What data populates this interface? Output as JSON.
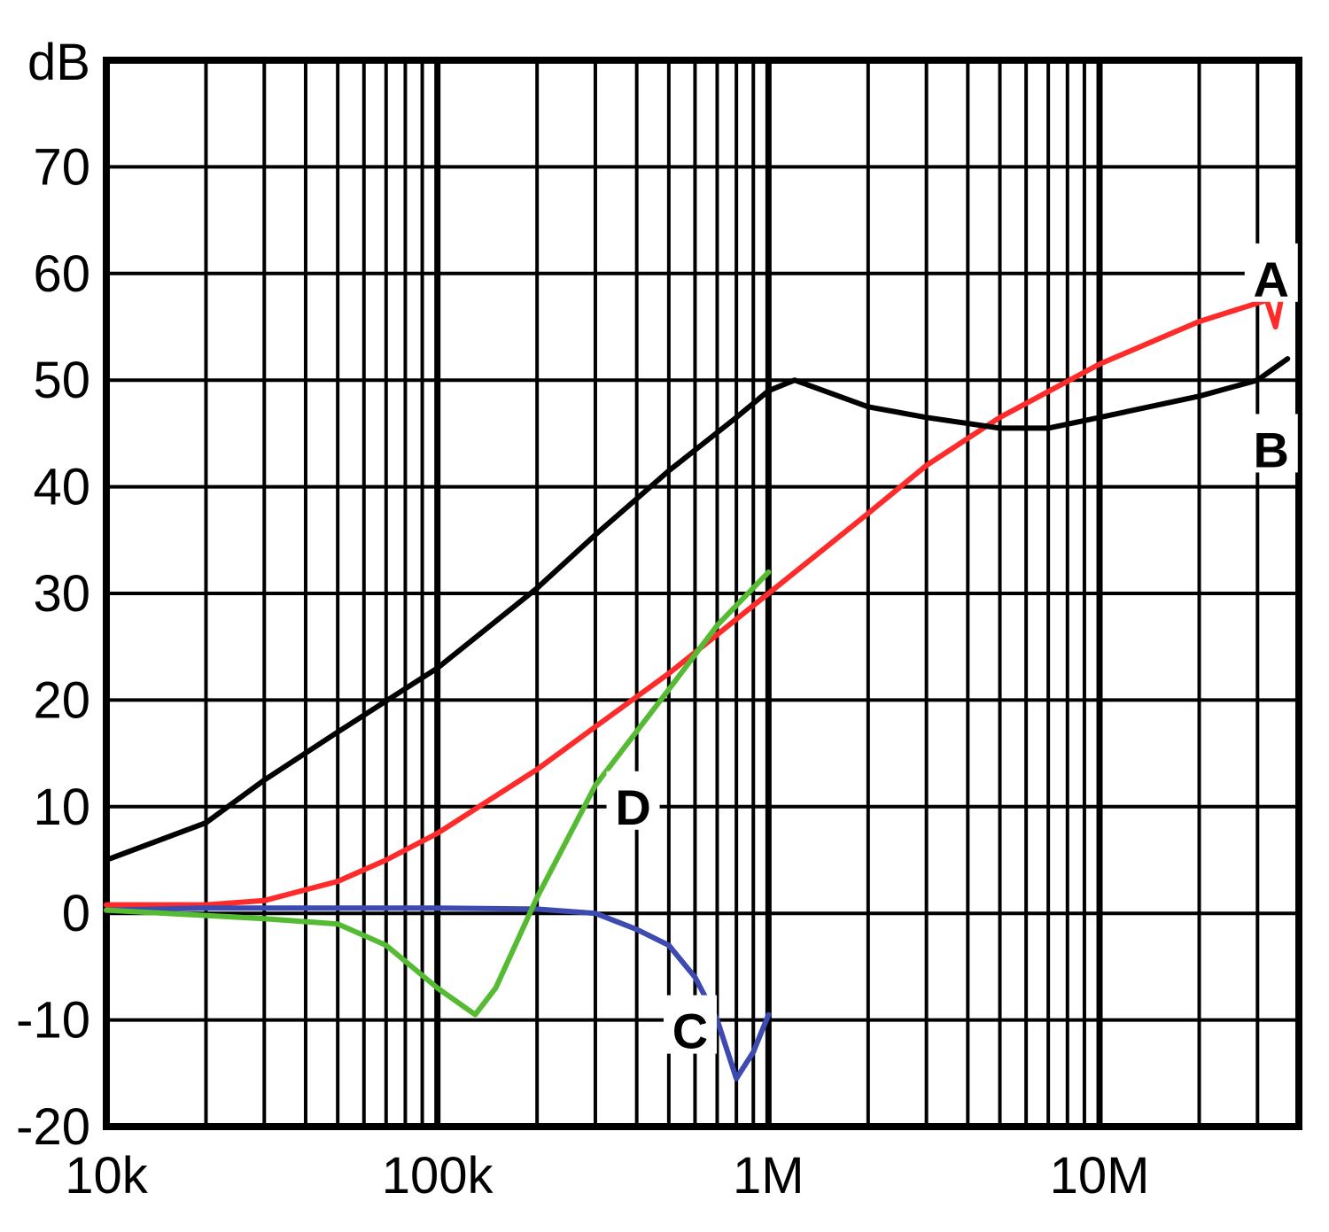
{
  "chart_data": {
    "type": "line",
    "x_scale": "log",
    "xlim": [
      10000,
      40000000
    ],
    "ylim": [
      -20,
      80
    ],
    "ylabel": "dB",
    "grid": true,
    "x_tick_labels": [
      {
        "value": 10000,
        "label": "10k"
      },
      {
        "value": 100000,
        "label": "100k"
      },
      {
        "value": 1000000,
        "label": "1M"
      },
      {
        "value": 10000000,
        "label": "10M"
      }
    ],
    "y_tick_labels": [
      {
        "value": -20,
        "label": "-20"
      },
      {
        "value": -10,
        "label": "-10"
      },
      {
        "value": 0,
        "label": "0"
      },
      {
        "value": 10,
        "label": "10"
      },
      {
        "value": 20,
        "label": "20"
      },
      {
        "value": 30,
        "label": "30"
      },
      {
        "value": 40,
        "label": "40"
      },
      {
        "value": 50,
        "label": "50"
      },
      {
        "value": 60,
        "label": "60"
      },
      {
        "value": 70,
        "label": "70"
      }
    ],
    "series": [
      {
        "name": "A",
        "color": "#ff2a2a",
        "label_at": {
          "x": 33000000,
          "y": 59.5
        },
        "points": [
          [
            10000,
            0.8
          ],
          [
            20000,
            0.8
          ],
          [
            30000,
            1.2
          ],
          [
            50000,
            3.0
          ],
          [
            70000,
            5.0
          ],
          [
            100000,
            7.5
          ],
          [
            200000,
            13.5
          ],
          [
            300000,
            17.5
          ],
          [
            500000,
            22.5
          ],
          [
            1000000,
            30.0
          ],
          [
            2000000,
            37.5
          ],
          [
            3000000,
            42.0
          ],
          [
            5000000,
            46.5
          ],
          [
            10000000,
            51.5
          ],
          [
            20000000,
            55.5
          ],
          [
            32000000,
            57.5
          ],
          [
            34000000,
            55.0
          ],
          [
            37000000,
            60.5
          ]
        ]
      },
      {
        "name": "B",
        "color": "#000000",
        "label_at": {
          "x": 33000000,
          "y": 43.5
        },
        "points": [
          [
            10000,
            5.0
          ],
          [
            20000,
            8.5
          ],
          [
            30000,
            12.5
          ],
          [
            50000,
            17.0
          ],
          [
            100000,
            23.0
          ],
          [
            200000,
            30.5
          ],
          [
            300000,
            35.5
          ],
          [
            500000,
            41.5
          ],
          [
            800000,
            46.5
          ],
          [
            1000000,
            49.0
          ],
          [
            1200000,
            50.0
          ],
          [
            2000000,
            47.5
          ],
          [
            3000000,
            46.5
          ],
          [
            5000000,
            45.5
          ],
          [
            7000000,
            45.5
          ],
          [
            10000000,
            46.5
          ],
          [
            20000000,
            48.5
          ],
          [
            30000000,
            50.0
          ],
          [
            37000000,
            52.0
          ]
        ]
      },
      {
        "name": "C",
        "color": "#3d4bb0",
        "label_at": {
          "x": 580000,
          "y": -11
        },
        "points": [
          [
            10000,
            0.3
          ],
          [
            20000,
            0.5
          ],
          [
            50000,
            0.5
          ],
          [
            100000,
            0.5
          ],
          [
            200000,
            0.4
          ],
          [
            300000,
            0.0
          ],
          [
            400000,
            -1.5
          ],
          [
            500000,
            -3.0
          ],
          [
            600000,
            -6.0
          ],
          [
            700000,
            -10.0
          ],
          [
            800000,
            -15.5
          ],
          [
            900000,
            -13.0
          ],
          [
            1000000,
            -9.5
          ]
        ]
      },
      {
        "name": "D",
        "color": "#55bb33",
        "label_at": {
          "x": 390000,
          "y": 10
        },
        "points": [
          [
            10000,
            0.3
          ],
          [
            30000,
            -0.5
          ],
          [
            50000,
            -1.0
          ],
          [
            70000,
            -3.0
          ],
          [
            100000,
            -7.0
          ],
          [
            130000,
            -9.5
          ],
          [
            150000,
            -7.0
          ],
          [
            200000,
            1.5
          ],
          [
            300000,
            12.0
          ],
          [
            500000,
            21.0
          ],
          [
            700000,
            27.0
          ],
          [
            1000000,
            32.0
          ]
        ]
      }
    ]
  }
}
